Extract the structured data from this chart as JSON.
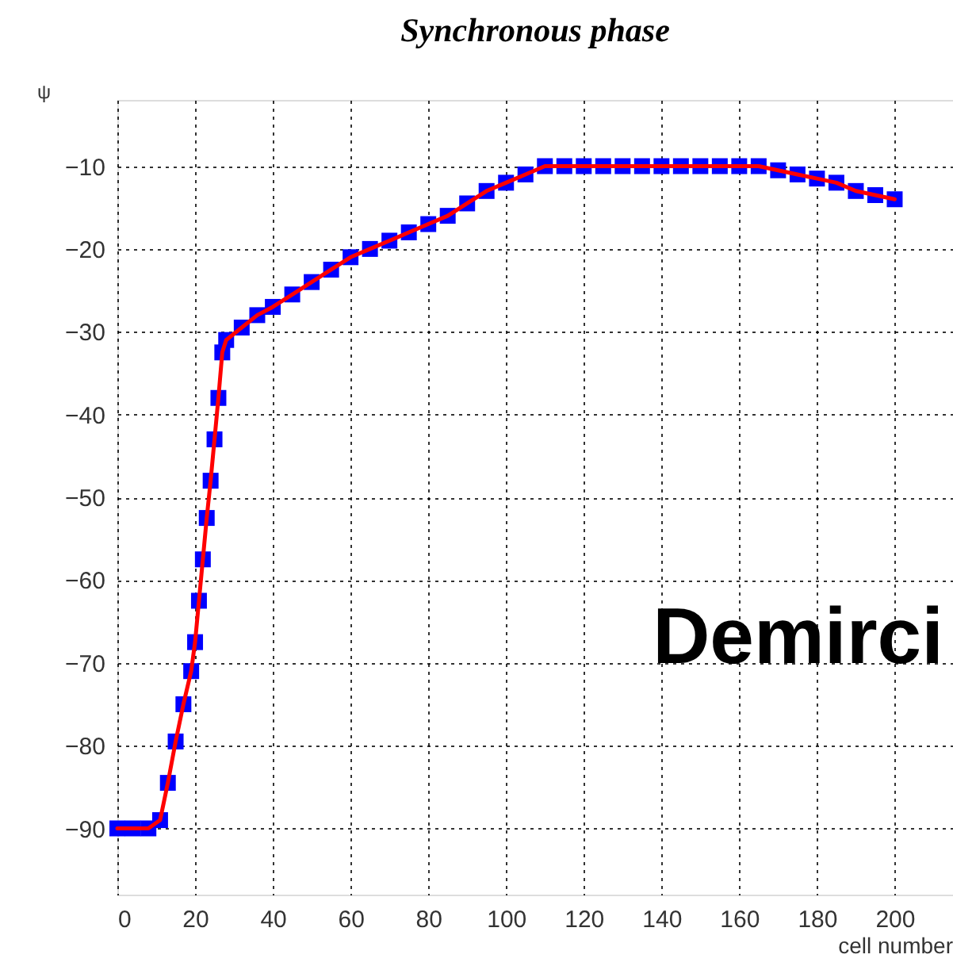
{
  "chart_data": {
    "type": "line",
    "title": "Synchronous phase",
    "xlabel": "cell number",
    "ylabel": "ψ",
    "x": [
      0,
      4,
      8,
      11,
      13,
      15,
      17,
      19,
      20,
      21,
      22,
      23,
      24,
      25,
      26,
      27,
      28,
      32,
      36,
      40,
      45,
      50,
      55,
      60,
      65,
      70,
      75,
      80,
      85,
      90,
      95,
      100,
      105,
      110,
      115,
      120,
      125,
      130,
      135,
      140,
      145,
      150,
      155,
      160,
      165,
      170,
      175,
      180,
      185,
      190,
      195,
      200
    ],
    "series": [
      {
        "type": "scatter",
        "color": "#0000ff",
        "marker": "square",
        "values": [
          -90,
          -90,
          -90,
          -89,
          -84.5,
          -79.5,
          -75,
          -71,
          -67.5,
          -62.5,
          -57.5,
          -52.5,
          -48,
          -43,
          -38,
          -32.5,
          -31,
          -29.5,
          -28,
          -27,
          -25.5,
          -24,
          -22.5,
          -21,
          -20,
          -19,
          -18,
          -17,
          -16,
          -14.5,
          -13,
          -12,
          -11,
          -10,
          -10,
          -10,
          -10,
          -10,
          -10,
          -10,
          -10,
          -10,
          -10,
          -10,
          -10,
          -10.5,
          -11,
          -11.5,
          -12,
          -13,
          -13.5,
          -14
        ]
      },
      {
        "color": "#ff0000",
        "line_style": "solid",
        "values": [
          -90,
          -90,
          -90,
          -89,
          -84.5,
          -79.5,
          -75,
          -71,
          -67.5,
          -62.5,
          -57.5,
          -52.5,
          -48,
          -43,
          -38,
          -32.5,
          -31,
          -29.5,
          -28,
          -27,
          -25.5,
          -24,
          -22.5,
          -21,
          -20,
          -19,
          -18,
          -17,
          -16,
          -14.5,
          -13,
          -12,
          -11,
          -10,
          -10,
          -10,
          -10,
          -10,
          -10,
          -10,
          -10,
          -10,
          -10,
          -10,
          -10,
          -10.5,
          -11,
          -11.5,
          -12,
          -13,
          -13.5,
          -14
        ]
      }
    ],
    "xlim": [
      0,
      215
    ],
    "xticks": [
      0,
      20,
      40,
      60,
      80,
      100,
      120,
      140,
      160,
      180,
      200
    ],
    "ylim": [
      -98,
      -2
    ],
    "yticks": [
      -90,
      -80,
      -70,
      -60,
      -50,
      -40,
      -30,
      -20,
      -10
    ],
    "grid": true,
    "annotations": [
      "Demirci"
    ]
  }
}
